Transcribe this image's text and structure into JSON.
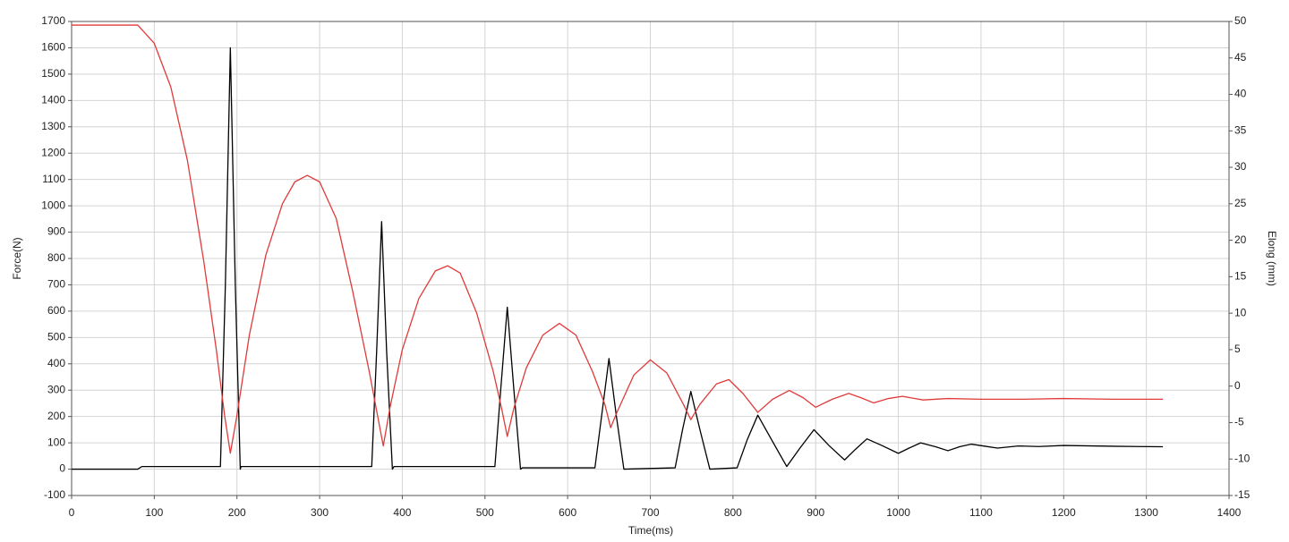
{
  "chart_data": {
    "type": "line",
    "xlabel": "Time(ms)",
    "ylabel": "Force(N)",
    "y2label": "Elong (mm)",
    "xlim": [
      0,
      1400
    ],
    "xticks": [
      0,
      100,
      200,
      300,
      400,
      500,
      600,
      700,
      800,
      900,
      1000,
      1100,
      1200,
      1300,
      1400
    ],
    "ylim": [
      -100,
      1700
    ],
    "yticks": [
      -100,
      0,
      100,
      200,
      300,
      400,
      500,
      600,
      700,
      800,
      900,
      1000,
      1100,
      1200,
      1300,
      1400,
      1500,
      1600,
      1700
    ],
    "y2lim": [
      -15,
      50
    ],
    "y2ticks": [
      -15,
      -10,
      -5,
      0,
      5,
      10,
      15,
      20,
      25,
      30,
      35,
      40,
      45,
      50
    ],
    "grid": true,
    "series": [
      {
        "color": "#000000",
        "x": [
          0,
          80,
          85,
          180,
          186,
          192,
          198,
          204,
          205,
          363,
          369,
          375,
          381,
          388,
          390,
          512,
          519,
          527,
          535,
          543,
          545,
          633,
          641,
          650,
          659,
          668,
          730,
          739,
          749,
          760,
          772,
          805,
          817,
          830,
          847,
          865,
          881,
          898,
          916,
          935,
          948,
          962,
          980,
          1000,
          1013,
          1027,
          1045,
          1060,
          1074,
          1088,
          1105,
          1120,
          1145,
          1170,
          1200,
          1260,
          1320
        ],
        "values": [
          0,
          0,
          10,
          10,
          700,
          1600,
          700,
          0,
          10,
          10,
          450,
          940,
          450,
          0,
          10,
          10,
          300,
          615,
          300,
          0,
          5,
          5,
          200,
          420,
          200,
          0,
          5,
          150,
          295,
          150,
          0,
          5,
          110,
          205,
          110,
          10,
          80,
          150,
          90,
          35,
          75,
          115,
          90,
          60,
          80,
          100,
          85,
          70,
          85,
          95,
          87,
          80,
          88,
          86,
          90,
          87,
          85
        ]
      },
      {
        "color": "#e03a3a",
        "axis": "y2",
        "x": [
          0,
          80,
          100,
          120,
          140,
          160,
          175,
          185,
          192,
          200,
          215,
          235,
          255,
          270,
          285,
          300,
          320,
          340,
          360,
          370,
          377,
          385,
          400,
          420,
          440,
          455,
          470,
          490,
          510,
          520,
          527,
          535,
          550,
          570,
          590,
          610,
          630,
          645,
          652,
          660,
          680,
          700,
          720,
          740,
          749,
          760,
          780,
          795,
          812,
          830,
          848,
          868,
          885,
          900,
          920,
          940,
          955,
          970,
          988,
          1005,
          1030,
          1060,
          1100,
          1150,
          1200,
          1260,
          1320
        ],
        "values": [
          49.5,
          49.5,
          47,
          41,
          31,
          17,
          5,
          -4,
          -9.2,
          -4,
          7,
          18,
          25,
          28,
          28.9,
          28,
          23,
          13,
          2,
          -4,
          -8.2,
          -3,
          5,
          12,
          15.8,
          16.5,
          15.5,
          10,
          2,
          -3,
          -6.9,
          -3,
          2.5,
          7,
          8.6,
          7,
          2,
          -2.5,
          -5.7,
          -3.5,
          1.5,
          3.6,
          1.8,
          -2.5,
          -4.6,
          -2.5,
          0.3,
          0.9,
          -1,
          -3.6,
          -1.8,
          -0.6,
          -1.6,
          -2.9,
          -1.8,
          -1,
          -1.6,
          -2.3,
          -1.7,
          -1.4,
          -1.9,
          -1.7,
          -1.8,
          -1.8,
          -1.7,
          -1.8,
          -1.8
        ]
      }
    ]
  }
}
